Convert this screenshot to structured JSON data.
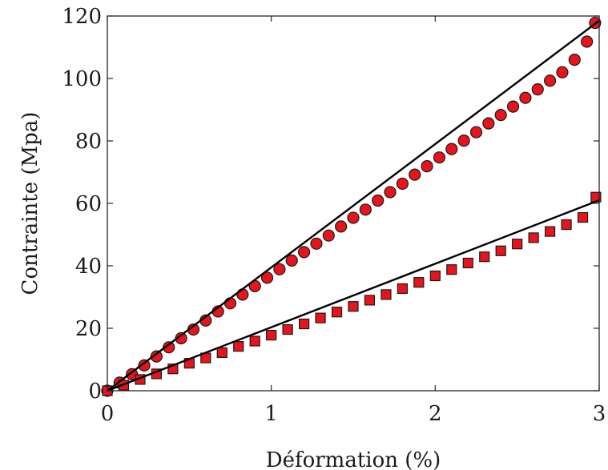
{
  "chart_data": {
    "type": "scatter",
    "xlabel": "Déformation (%)",
    "ylabel": "Contrainte (Mpa)",
    "xlim": [
      0,
      3
    ],
    "ylim": [
      0,
      120
    ],
    "x_ticks": [
      0,
      1,
      2,
      3
    ],
    "y_ticks": [
      0,
      20,
      40,
      60,
      80,
      100,
      120
    ],
    "x_tick_labels": [
      "0",
      "1",
      "2",
      "3"
    ],
    "y_tick_labels": [
      "0",
      "20",
      "40",
      "60",
      "80",
      "100",
      "120"
    ],
    "grid": false,
    "legend": "none",
    "series": [
      {
        "marker": "circle",
        "color": "#e8141c",
        "x": [
          0.0,
          0.075,
          0.15,
          0.225,
          0.3,
          0.375,
          0.45,
          0.525,
          0.6,
          0.675,
          0.75,
          0.825,
          0.9,
          0.975,
          1.05,
          1.125,
          1.2,
          1.275,
          1.35,
          1.425,
          1.5,
          1.575,
          1.65,
          1.725,
          1.8,
          1.875,
          1.95,
          2.025,
          2.1,
          2.175,
          2.25,
          2.325,
          2.4,
          2.475,
          2.55,
          2.625,
          2.7,
          2.775,
          2.85,
          2.925,
          2.975
        ],
        "y": [
          0.0,
          2.6,
          5.3,
          8.1,
          11.0,
          13.9,
          16.8,
          19.6,
          22.5,
          25.4,
          28.0,
          30.8,
          33.5,
          36.2,
          38.9,
          41.7,
          44.4,
          47.1,
          49.7,
          52.6,
          55.4,
          58.0,
          60.9,
          63.6,
          66.3,
          69.2,
          71.9,
          74.7,
          77.4,
          80.1,
          82.8,
          85.6,
          88.3,
          91.0,
          93.8,
          96.5,
          99.3,
          102.0,
          106.0,
          111.8,
          117.8
        ]
      },
      {
        "marker": "square",
        "color": "#e8141c",
        "x": [
          0.0,
          0.1,
          0.2,
          0.3,
          0.4,
          0.5,
          0.6,
          0.7,
          0.8,
          0.9,
          1.0,
          1.1,
          1.2,
          1.3,
          1.4,
          1.5,
          1.6,
          1.7,
          1.8,
          1.9,
          2.0,
          2.1,
          2.2,
          2.3,
          2.4,
          2.5,
          2.6,
          2.7,
          2.8,
          2.9,
          2.98
        ],
        "y": [
          0.0,
          1.8,
          3.6,
          5.4,
          7.0,
          8.8,
          10.5,
          12.2,
          14.2,
          15.9,
          17.8,
          19.6,
          21.4,
          23.3,
          25.2,
          27.0,
          29.0,
          30.8,
          32.7,
          34.7,
          36.8,
          38.8,
          40.9,
          42.9,
          44.8,
          47.0,
          49.0,
          51.0,
          53.2,
          55.5,
          62.0
        ]
      }
    ],
    "fit_lines": [
      {
        "color": "#000000",
        "x": [
          0,
          3
        ],
        "y": [
          0,
          118.5
        ]
      },
      {
        "color": "#000000",
        "x": [
          0,
          3
        ],
        "y": [
          0,
          61.0
        ]
      }
    ]
  }
}
